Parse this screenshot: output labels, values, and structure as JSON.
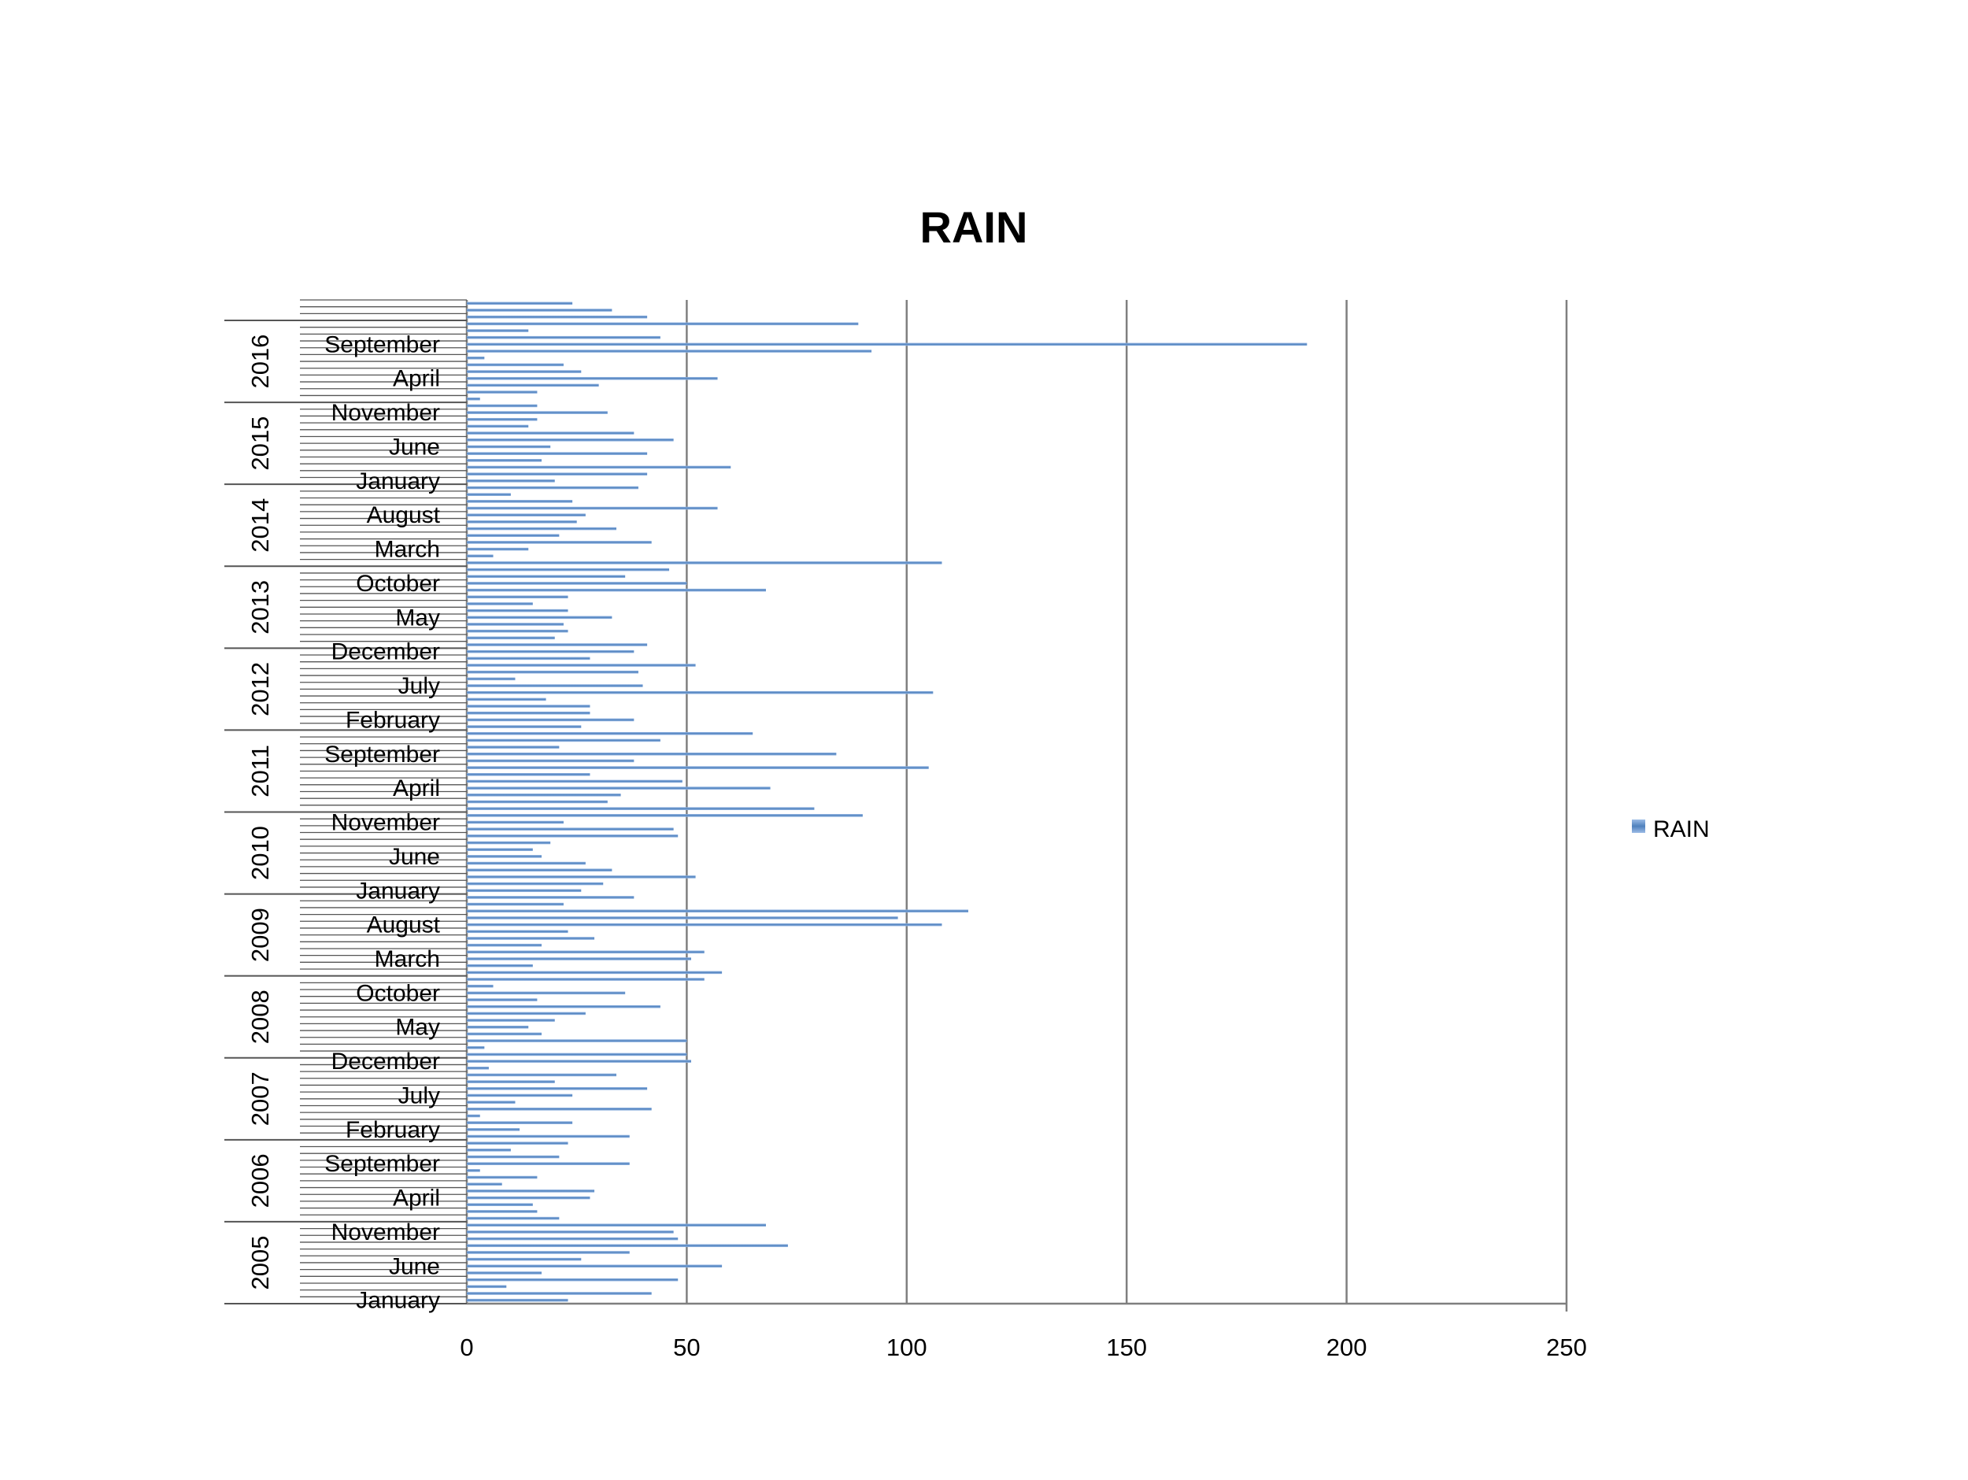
{
  "chart_data": {
    "type": "bar",
    "orientation": "horizontal",
    "title": "RAIN",
    "xlabel": "",
    "ylabel": "",
    "xlim": [
      0,
      250
    ],
    "x_ticks": [
      "0",
      "50",
      "100",
      "150",
      "200",
      "250"
    ],
    "grid": "vertical major gridlines",
    "legend": {
      "position": "right",
      "entries": [
        "RAIN"
      ]
    },
    "colors": {
      "bar": "#4f81bd",
      "bar_light": "#9bbbe6",
      "grid": "#7f7f7f",
      "axis": "#7f7f7f",
      "text": "#000000"
    },
    "years": [
      "2005",
      "2006",
      "2007",
      "2008",
      "2009",
      "2010",
      "2011",
      "2012",
      "2013",
      "2014",
      "2015",
      "2016"
    ],
    "month_labels": [
      {
        "index": 0,
        "text": "January"
      },
      {
        "index": 5,
        "text": "June"
      },
      {
        "index": 10,
        "text": "November"
      },
      {
        "index": 15,
        "text": "April"
      },
      {
        "index": 20,
        "text": "September"
      },
      {
        "index": 25,
        "text": "February"
      },
      {
        "index": 30,
        "text": "July"
      },
      {
        "index": 35,
        "text": "December"
      },
      {
        "index": 40,
        "text": "May"
      },
      {
        "index": 45,
        "text": "October"
      },
      {
        "index": 50,
        "text": "March"
      },
      {
        "index": 55,
        "text": "August"
      },
      {
        "index": 60,
        "text": "January"
      },
      {
        "index": 65,
        "text": "June"
      },
      {
        "index": 70,
        "text": "November"
      },
      {
        "index": 75,
        "text": "April"
      },
      {
        "index": 80,
        "text": "September"
      },
      {
        "index": 85,
        "text": "February"
      },
      {
        "index": 90,
        "text": "July"
      },
      {
        "index": 95,
        "text": "December"
      },
      {
        "index": 100,
        "text": "May"
      },
      {
        "index": 105,
        "text": "October"
      },
      {
        "index": 110,
        "text": "March"
      },
      {
        "index": 115,
        "text": "August"
      },
      {
        "index": 120,
        "text": "January"
      },
      {
        "index": 125,
        "text": "June"
      },
      {
        "index": 130,
        "text": "November"
      },
      {
        "index": 135,
        "text": "April"
      },
      {
        "index": 140,
        "text": "September"
      }
    ],
    "series": [
      {
        "name": "RAIN",
        "values": [
          23,
          42,
          9,
          48,
          17,
          58,
          26,
          37,
          73,
          48,
          47,
          68,
          21,
          16,
          15,
          28,
          29,
          8,
          16,
          3,
          37,
          21,
          10,
          23,
          37,
          12,
          24,
          3,
          42,
          11,
          24,
          41,
          20,
          34,
          5,
          51,
          50,
          4,
          50,
          17,
          14,
          20,
          27,
          44,
          16,
          36,
          6,
          54,
          58,
          15,
          51,
          54,
          17,
          29,
          23,
          108,
          98,
          114,
          22,
          38,
          26,
          31,
          52,
          33,
          27,
          17,
          15,
          19,
          48,
          47,
          22,
          90,
          79,
          32,
          35,
          69,
          49,
          28,
          105,
          38,
          84,
          21,
          44,
          65,
          26,
          38,
          28,
          28,
          18,
          106,
          40,
          11,
          39,
          52,
          28,
          38,
          41,
          20,
          23,
          22,
          33,
          23,
          15,
          23,
          68,
          50,
          36,
          46,
          108,
          6,
          14,
          42,
          21,
          34,
          25,
          27,
          57,
          24,
          10,
          39,
          20,
          41,
          60,
          17,
          41,
          19,
          47,
          38,
          14,
          16,
          32,
          16,
          3,
          16,
          30,
          57,
          26,
          22,
          4,
          92,
          191,
          44,
          14,
          89,
          41,
          33,
          24
        ]
      }
    ]
  }
}
